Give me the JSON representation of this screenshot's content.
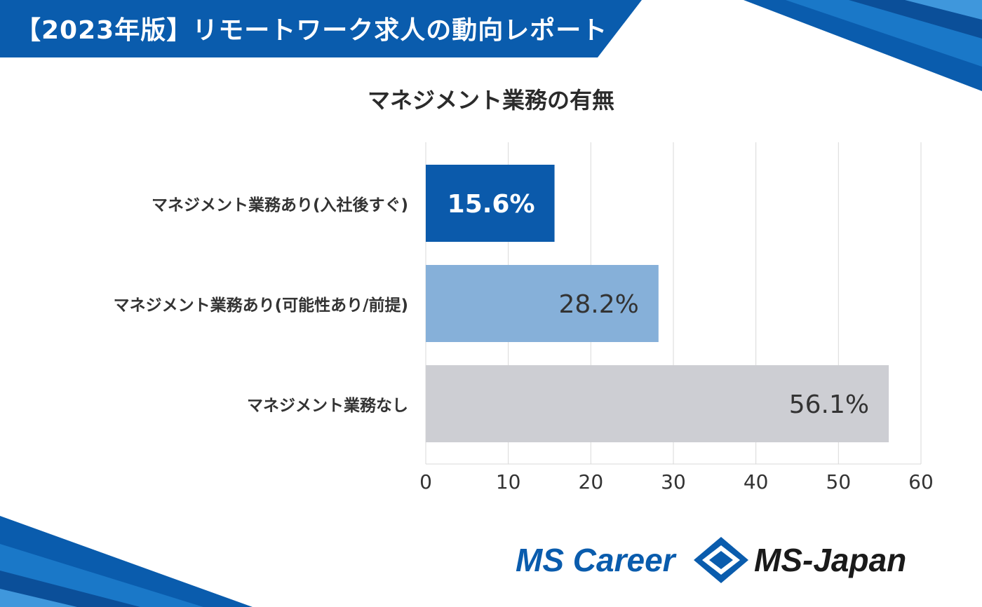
{
  "header": {
    "title": "【2023年版】リモートワーク求人の動向レポート"
  },
  "colors": {
    "brand_blue": "#0a5cad",
    "bar_1": "#0b5aab",
    "bar_2": "#86b0d9",
    "bar_3": "#cdced3",
    "label_light": "#ffffff",
    "label_dark": "#333333"
  },
  "chart_data": {
    "type": "bar",
    "orientation": "horizontal",
    "title": "マネジメント業務の有無",
    "categories": [
      "マネジメント業務あり(入社後すぐ)",
      "マネジメント業務あり(可能性あり/前提)",
      "マネジメント業務なし"
    ],
    "values": [
      15.6,
      28.2,
      56.1
    ],
    "data_labels": [
      "15.6%",
      "28.2%",
      "56.1%"
    ],
    "xlim": [
      0,
      60
    ],
    "ticks": [
      0,
      10,
      20,
      30,
      40,
      50,
      60
    ],
    "tick_labels": [
      "0",
      "10",
      "20",
      "30",
      "40",
      "50",
      "60"
    ],
    "grid": true
  },
  "logos": {
    "left": "MS Career",
    "right": "MS-Japan"
  }
}
